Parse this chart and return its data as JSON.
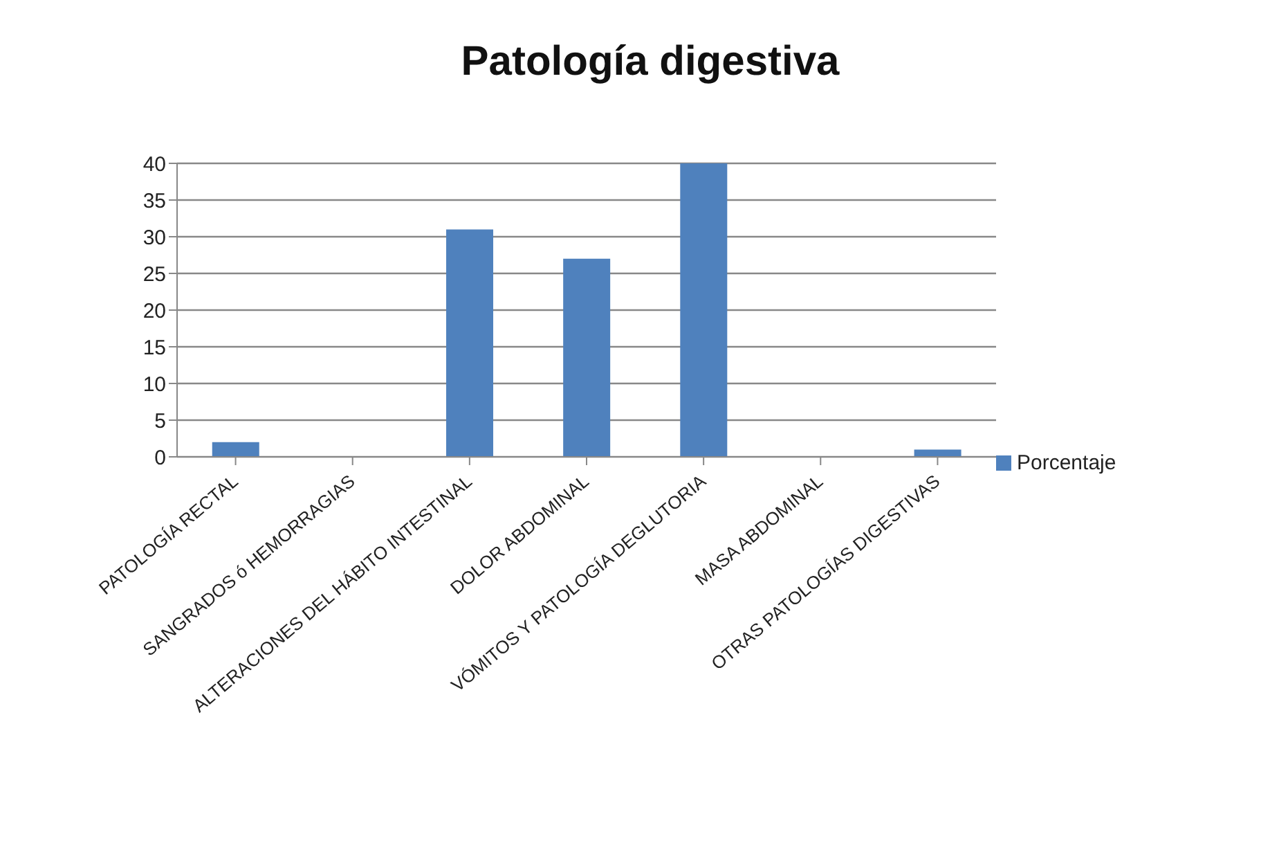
{
  "chart_data": {
    "type": "bar",
    "title": "Patología digestiva",
    "categories": [
      "PATOLOGÍA RECTAL",
      "SANGRADOS ó HEMORRAGIAS",
      "ALTERACIONES DEL HÁBITO INTESTINAL",
      "DOLOR ABDOMINAL",
      "VÓMITOS Y PATOLOGÍA DEGLUTORIA",
      "MASA ABDOMINAL",
      "OTRAS PATOLOGÍAS DIGESTIVAS"
    ],
    "series": [
      {
        "name": "Porcentaje",
        "color": "#4f81bd",
        "values": [
          2,
          0,
          31,
          27,
          40,
          0,
          1
        ]
      }
    ],
    "ylim": [
      0,
      40
    ],
    "yticks": [
      0,
      5,
      10,
      15,
      20,
      25,
      30,
      35,
      40
    ],
    "grid": "y",
    "legend": "right"
  }
}
